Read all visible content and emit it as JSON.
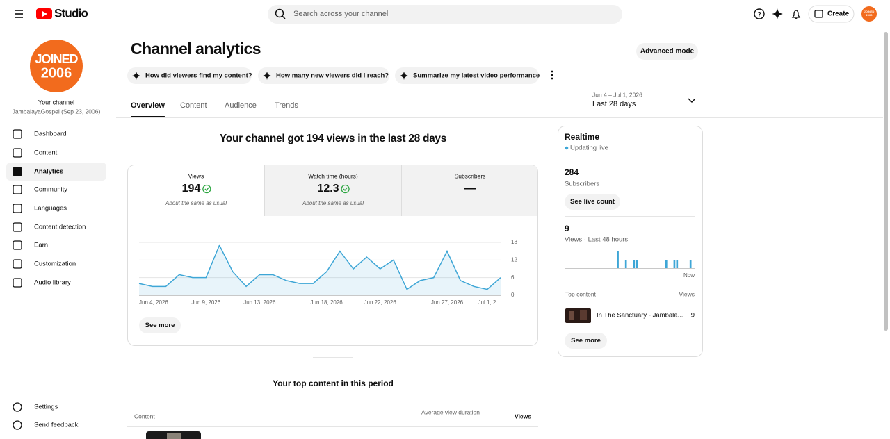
{
  "header": {
    "logo": "Studio",
    "search_placeholder": "Search across your channel",
    "create": "Create"
  },
  "sidebar": {
    "avatar_text": [
      "JOINED",
      "2006"
    ],
    "channel_label": "Your channel",
    "channel_name": "JambalayaGospel (Sep 23, 2006)",
    "nav": [
      "Dashboard",
      "Content",
      "Analytics",
      "Community",
      "Languages",
      "Content detection",
      "Earn",
      "Customization",
      "Audio library"
    ],
    "active_index": 2,
    "footer": [
      "Settings",
      "Send feedback"
    ]
  },
  "main": {
    "title": "Channel analytics",
    "advanced_mode": "Advanced mode",
    "chips": [
      "How did viewers find my content?",
      "How many new viewers did I reach?",
      "Summarize my latest video performance"
    ],
    "tabs": [
      "Overview",
      "Content",
      "Audience",
      "Trends"
    ],
    "active_tab": 0,
    "date_range": "Jun 4 – Jul 1, 2026",
    "period": "Last 28 days",
    "headline": "Your channel got 194 views in the last 28 days",
    "metrics": [
      {
        "label": "Views",
        "value": 194,
        "note": "About the same as usual"
      },
      {
        "label": "Watch time (hours)",
        "value": 12.3,
        "note": "About the same as usual"
      },
      {
        "label": "Subscribers",
        "value": "—"
      }
    ],
    "see_more": "See more",
    "top_content_title": "Your top content in this period",
    "table_headers": [
      "Content",
      "Average view duration",
      "Views"
    ]
  },
  "chart_data": [
    {
      "type": "line",
      "categories": [
        "Jun 4, 2026",
        null,
        null,
        null,
        null,
        "Jun 9, 2026",
        null,
        null,
        null,
        "Jun 13, 2026",
        null,
        null,
        null,
        null,
        "Jun 18, 2026",
        null,
        null,
        null,
        "Jun 22, 2026",
        null,
        null,
        null,
        null,
        "Jun 27, 2026",
        null,
        null,
        null,
        "Jul 1, 2..."
      ],
      "values": [
        4,
        3,
        3,
        7,
        6,
        6,
        17,
        8,
        3,
        7,
        7,
        5,
        4,
        4,
        8,
        15,
        9,
        13,
        9,
        12,
        2,
        5,
        6,
        15,
        5,
        3,
        2,
        6
      ],
      "color": "#3ea6d6",
      "ylim": [
        0,
        18
      ],
      "yticks": [
        0,
        6,
        12,
        18
      ],
      "grid": true
    },
    {
      "type": "bar",
      "values": [
        0,
        0,
        0,
        0,
        0,
        0,
        0,
        0,
        0,
        0,
        0,
        0,
        0,
        0,
        0,
        0,
        0,
        0,
        0,
        2,
        0,
        0,
        1,
        0,
        0,
        1,
        1,
        0,
        0,
        0,
        0,
        0,
        0,
        0,
        0,
        0,
        0,
        1,
        0,
        0,
        1,
        1,
        0,
        0,
        0,
        0,
        1,
        0
      ],
      "color": "#3ea6d6",
      "ylim": [
        0,
        2
      ]
    }
  ],
  "realtime": {
    "title": "Realtime",
    "status": "Updating live",
    "subscribers": 284,
    "subscribers_label": "Subscribers",
    "see_live_count": "See live count",
    "views": 9,
    "views_label": "Views · Last 48 hours",
    "now_label": "Now",
    "top_content_label": "Top content",
    "views_header": "Views",
    "top_items": [
      {
        "title": "In The Sanctuary - Jambala...",
        "views": 9
      }
    ],
    "see_more": "See more"
  }
}
